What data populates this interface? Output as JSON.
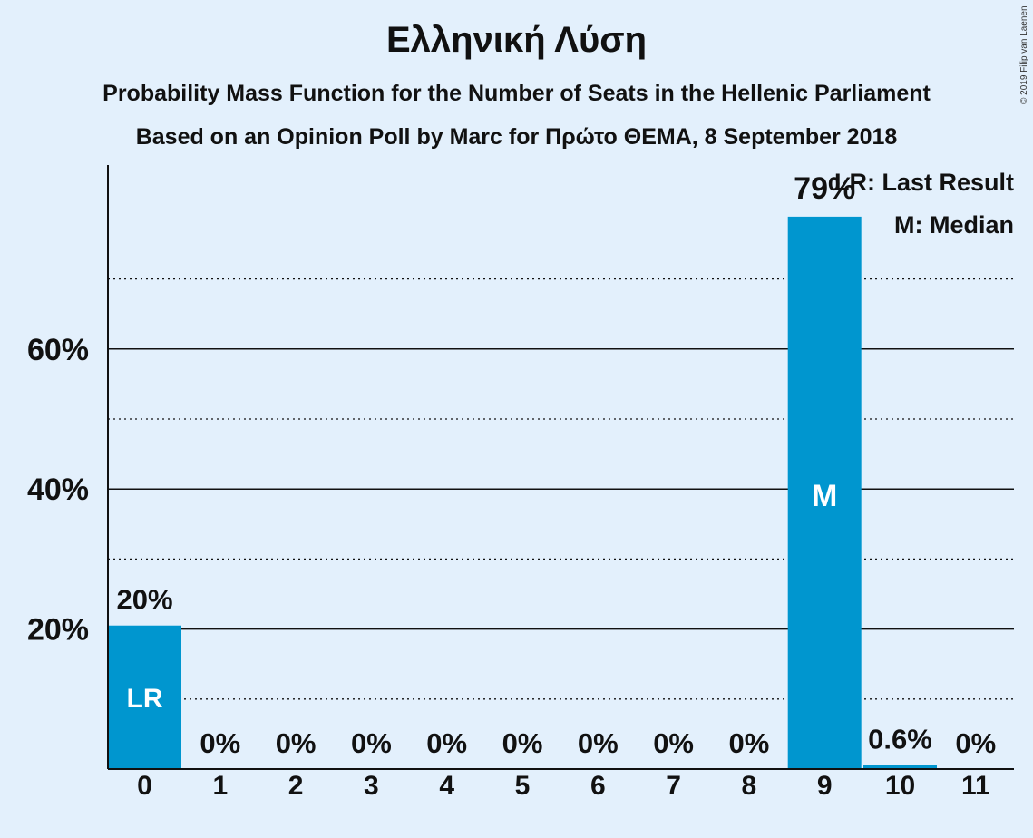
{
  "title": "Ελληνική Λύση",
  "subtitle1": "Probability Mass Function for the Number of Seats in the Hellenic Parliament",
  "subtitle2": "Based on an Opinion Poll by Marc for Πρώτο ΘΕΜΑ, 8 September 2018",
  "copyright": "© 2019 Filip van Laenen",
  "legend": {
    "last_result": "LR: Last Result",
    "median": "M: Median"
  },
  "colors": {
    "background": "#e3f0fc",
    "bar": "#0096cf",
    "text": "#111111"
  },
  "chart_data": {
    "type": "bar",
    "categories": [
      "0",
      "1",
      "2",
      "3",
      "4",
      "5",
      "6",
      "7",
      "8",
      "9",
      "10",
      "11"
    ],
    "values": [
      20.5,
      0,
      0,
      0,
      0,
      0,
      0,
      0,
      0,
      78.9,
      0.6,
      0
    ],
    "value_labels": [
      "20%",
      "0%",
      "0%",
      "0%",
      "0%",
      "0%",
      "0%",
      "0%",
      "0%",
      "79%",
      "0.6%",
      "0%"
    ],
    "ylim": [
      0,
      86
    ],
    "major_ticks": [
      20,
      40,
      60
    ],
    "major_tick_labels": [
      "20%",
      "40%",
      "60%"
    ],
    "minor_gridlines": [
      10,
      30,
      50,
      70
    ],
    "last_result_seat": "0",
    "median_seat": "9",
    "last_result_marker": "LR",
    "median_marker": "M",
    "legend_position": "top-right"
  }
}
